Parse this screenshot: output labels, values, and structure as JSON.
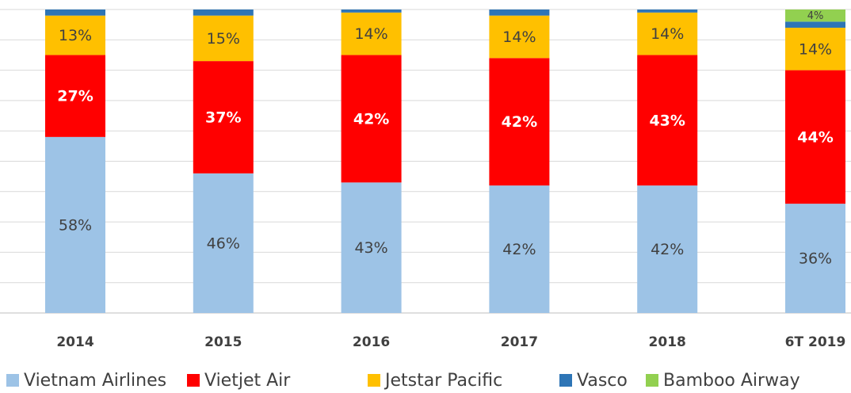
{
  "chart_data": {
    "type": "stacked_bar",
    "categories": [
      "2014",
      "2015",
      "2016",
      "2017",
      "2018",
      "6T 2019"
    ],
    "series": [
      {
        "name": "Vietnam Airlines",
        "color": "#9dc3e6",
        "label_color": "#404040",
        "values": [
          58,
          46,
          43,
          42,
          42,
          36
        ],
        "value_labels": [
          "58%",
          "46%",
          "43%",
          "42%",
          "42%",
          "36%"
        ]
      },
      {
        "name": "Vietjet Air",
        "color": "#ff0000",
        "label_color": "#ffffff",
        "values": [
          27,
          37,
          42,
          42,
          43,
          44
        ],
        "value_labels": [
          "27%",
          "37%",
          "42%",
          "42%",
          "43%",
          "44%"
        ]
      },
      {
        "name": "Jetstar Pacific",
        "color": "#ffc000",
        "label_color": "#404040",
        "values": [
          13,
          15,
          14,
          14,
          14,
          14
        ],
        "value_labels": [
          "13%",
          "15%",
          "14%",
          "14%",
          "14%",
          "14%"
        ]
      },
      {
        "name": "Vasco",
        "color": "#2e75b6",
        "values": [
          2,
          2,
          1,
          2,
          1,
          2
        ]
      },
      {
        "name": "Bamboo Airway",
        "color": "#92d050",
        "label_color": "#404040",
        "values": [
          null,
          null,
          null,
          null,
          null,
          4
        ],
        "value_labels": [
          null,
          null,
          null,
          null,
          null,
          "4%"
        ]
      }
    ],
    "ylim": [
      0,
      100
    ],
    "yticks": [
      0,
      10,
      20,
      30,
      40,
      50,
      60,
      70,
      80,
      90,
      100
    ],
    "grid": true,
    "legend": "bottom"
  }
}
